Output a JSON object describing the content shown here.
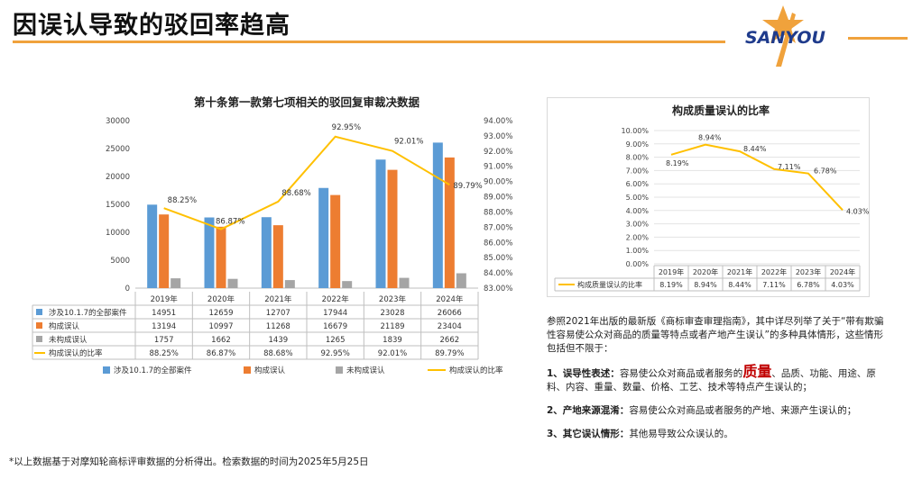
{
  "header": {
    "title": "因误认导致的驳回率趋高",
    "logo_text": "SANYOU"
  },
  "chart_data": [
    {
      "type": "bar",
      "title": "第十条第一款第七项相关的驳回复审裁决数据",
      "categories": [
        "2019年",
        "2020年",
        "2021年",
        "2022年",
        "2023年",
        "2024年"
      ],
      "series": [
        {
          "name": "涉及10.1.7的全部案件",
          "type": "bar",
          "axis": "left",
          "color": "#5b9bd5",
          "values": [
            14951,
            12659,
            12707,
            17944,
            23028,
            26066
          ],
          "labels": [
            "14951",
            "12659",
            "12707",
            "17944",
            "23028",
            "26066"
          ]
        },
        {
          "name": "构成误认",
          "type": "bar",
          "axis": "left",
          "color": "#ed7d31",
          "values": [
            13194,
            10997,
            11268,
            16679,
            21189,
            23404
          ],
          "labels": [
            "13194",
            "10997",
            "11268",
            "16679",
            "21189",
            "23404"
          ]
        },
        {
          "name": "未构成误认",
          "type": "bar",
          "axis": "left",
          "color": "#a5a5a5",
          "values": [
            1757,
            1662,
            1439,
            1265,
            1839,
            2662
          ],
          "labels": [
            "1757",
            "1662",
            "1439",
            "1265",
            "1839",
            "2662"
          ]
        },
        {
          "name": "构成误认的比率",
          "type": "line",
          "axis": "right",
          "color": "#ffc000",
          "values": [
            88.25,
            86.87,
            88.68,
            92.95,
            92.01,
            89.79
          ],
          "labels": [
            "88.25%",
            "86.87%",
            "88.68%",
            "92.95%",
            "92.01%",
            "89.79%"
          ]
        }
      ],
      "ylim": [
        0,
        30000
      ],
      "y_ticks": [
        "0",
        "5000",
        "10000",
        "15000",
        "20000",
        "25000",
        "30000"
      ],
      "y2lim": [
        83,
        94
      ],
      "y2_ticks": [
        "83.00%",
        "84.00%",
        "85.00%",
        "86.00%",
        "87.00%",
        "88.00%",
        "89.00%",
        "90.00%",
        "91.00%",
        "92.00%",
        "93.00%",
        "94.00%"
      ],
      "grid": false,
      "legend": "bottom"
    },
    {
      "type": "line",
      "title": "构成质量误认的比率",
      "categories": [
        "2019年",
        "2020年",
        "2021年",
        "2022年",
        "2023年",
        "2024年"
      ],
      "series": [
        {
          "name": "构成质量误认的比率",
          "color": "#ffc000",
          "values": [
            8.19,
            8.94,
            8.44,
            7.11,
            6.78,
            4.03
          ],
          "labels": [
            "8.19%",
            "8.94%",
            "8.44%",
            "7.11%",
            "6.78%",
            "4.03%"
          ]
        }
      ],
      "ylim": [
        0,
        10
      ],
      "y_ticks": [
        "0.00%",
        "1.00%",
        "2.00%",
        "3.00%",
        "4.00%",
        "5.00%",
        "6.00%",
        "7.00%",
        "8.00%",
        "9.00%",
        "10.00%"
      ],
      "grid": true,
      "legend": "bottom-left"
    }
  ],
  "description": {
    "intro": "参照2021年出版的最新版《商标审查审理指南》，其中详尽列举了关于“带有欺骗性容易使公众对商品的质量等特点或者产地产生误认”的多种具体情形，这些情形包括但不限于：",
    "items": [
      {
        "title": "1、误导性表述：",
        "before": "容易使公众对商品或者服务的",
        "emph": "质量",
        "after": "、品质、功能、用途、原料、内容、重量、数量、价格、工艺、技术等特点产生误认的；"
      },
      {
        "title": "2、产地来源混淆：",
        "text": "容易使公众对商品或者服务的产地、来源产生误认的；"
      },
      {
        "title": "3、其它误认情形：",
        "text": "其他易导致公众误认的。"
      }
    ]
  },
  "footnote": "*以上数据基于对摩知轮商标评审数据的分析得出。检索数据的时间为2025年5月25日"
}
